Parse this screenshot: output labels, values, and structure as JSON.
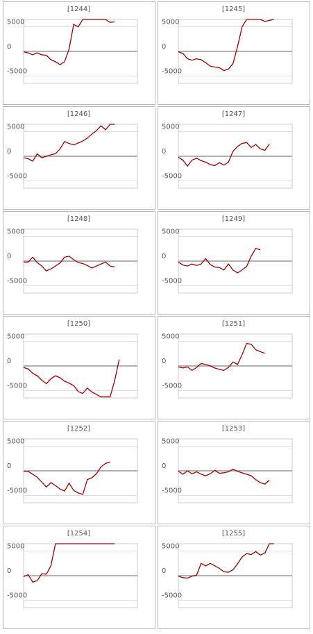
{
  "chart_data": [
    {
      "type": "line",
      "title": "[1244]",
      "color": "#a00000",
      "ylim": [
        -6500,
        6500
      ],
      "yticks": [
        5000,
        0,
        -5000
      ],
      "grid": true,
      "values": [
        -100,
        -300,
        -700,
        -300,
        -700,
        -800,
        -1700,
        -2100,
        -2700,
        -2100,
        500,
        5500,
        5000,
        6500,
        6500,
        6500,
        6500,
        6500,
        6500,
        5900,
        6000
      ]
    },
    {
      "type": "line",
      "title": "[1245]",
      "color": "#a00000",
      "ylim": [
        -6500,
        6500
      ],
      "yticks": [
        5000,
        0,
        -5000
      ],
      "grid": true,
      "values": [
        -100,
        -400,
        -1500,
        -1800,
        -1500,
        -1700,
        -2300,
        -3000,
        -3200,
        -3300,
        -3900,
        -3600,
        -2500,
        1000,
        5000,
        6500,
        6500,
        6500,
        6500,
        6100,
        6300,
        6500
      ]
    },
    {
      "type": "line",
      "title": "[1246]",
      "color": "#a00000",
      "ylim": [
        -6500,
        6500
      ],
      "yticks": [
        5000,
        0,
        -5000
      ],
      "grid": true,
      "values": [
        -300,
        -500,
        -1000,
        500,
        -300,
        0,
        300,
        500,
        1500,
        3000,
        2600,
        2300,
        2700,
        3100,
        3700,
        4500,
        5200,
        6200,
        5400,
        6500,
        6500
      ]
    },
    {
      "type": "line",
      "title": "[1247]",
      "color": "#a00000",
      "ylim": [
        -6500,
        6500
      ],
      "yticks": [
        5000,
        0,
        -5000
      ],
      "grid": true,
      "values": [
        -200,
        -800,
        -2000,
        -800,
        -400,
        -900,
        -1200,
        -1700,
        -1900,
        -1300,
        -1800,
        -1200,
        1000,
        2000,
        2600,
        2800,
        1800,
        2400,
        1500,
        1200,
        2500
      ]
    },
    {
      "type": "line",
      "title": "[1248]",
      "color": "#a00000",
      "ylim": [
        -6500,
        6500
      ],
      "yticks": [
        5000,
        0,
        -5000
      ],
      "grid": true,
      "values": [
        -200,
        -200,
        800,
        -300,
        -1000,
        -2000,
        -1600,
        -1000,
        -400,
        800,
        1000,
        300,
        -300,
        -500,
        -900,
        -1400,
        -1000,
        -600,
        -200,
        -1000,
        -1200
      ]
    },
    {
      "type": "line",
      "title": "[1249]",
      "color": "#a00000",
      "ylim": [
        -6500,
        6500
      ],
      "yticks": [
        5000,
        0,
        -5000
      ],
      "grid": true,
      "values": [
        -200,
        -800,
        -1000,
        -600,
        -900,
        -600,
        500,
        -700,
        -1200,
        -1300,
        -1800,
        -600,
        -1800,
        -2400,
        -1800,
        -1100,
        1000,
        2600,
        2300
      ]
    },
    {
      "type": "line",
      "title": "[1250]",
      "color": "#a00000",
      "ylim": [
        -6500,
        6500
      ],
      "yticks": [
        5000,
        0,
        -5000
      ],
      "grid": true,
      "values": [
        -300,
        -600,
        -1500,
        -2000,
        -2900,
        -3600,
        -2600,
        -2000,
        -2400,
        -3100,
        -3500,
        -4000,
        -5200,
        -5600,
        -4500,
        -5300,
        -5800,
        -6300,
        -6300,
        -6300,
        -3000,
        1300
      ]
    },
    {
      "type": "line",
      "title": "[1251]",
      "color": "#a00000",
      "ylim": [
        -6500,
        6500
      ],
      "yticks": [
        5000,
        0,
        -5000
      ],
      "grid": true,
      "values": [
        -200,
        -400,
        -200,
        -900,
        -300,
        500,
        300,
        0,
        -400,
        -700,
        -900,
        -300,
        800,
        300,
        2300,
        4600,
        4400,
        3300,
        2900,
        2600
      ]
    },
    {
      "type": "line",
      "title": "[1252]",
      "color": "#a00000",
      "ylim": [
        -6500,
        6500
      ],
      "yticks": [
        5000,
        0,
        -5000
      ],
      "grid": true,
      "values": [
        -100,
        -100,
        -700,
        -1300,
        -2300,
        -3300,
        -2400,
        -3000,
        -3700,
        -4100,
        -2500,
        -4000,
        -4500,
        -4800,
        -1800,
        -1400,
        -600,
        800,
        1500,
        1800
      ]
    },
    {
      "type": "line",
      "title": "[1253]",
      "color": "#a00000",
      "ylim": [
        -6500,
        6500
      ],
      "yticks": [
        5000,
        0,
        -5000
      ],
      "grid": true,
      "values": [
        -100,
        -700,
        0,
        -600,
        -200,
        -700,
        -1000,
        -600,
        100,
        -500,
        -400,
        -200,
        300,
        -100,
        -400,
        -700,
        -1000,
        -1800,
        -2400,
        -2700,
        -1900
      ]
    },
    {
      "type": "line",
      "title": "[1254]",
      "color": "#a00000",
      "ylim": [
        -6500,
        6500
      ],
      "yticks": [
        5000,
        0,
        -5000
      ],
      "grid": true,
      "values": [
        -200,
        200,
        -1300,
        -1000,
        400,
        300,
        2000,
        6500,
        6500,
        6500,
        6500,
        6500,
        6500,
        6500,
        6500,
        6500,
        6500,
        6500,
        6500,
        6500,
        6500
      ]
    },
    {
      "type": "line",
      "title": "[1255]",
      "color": "#a00000",
      "ylim": [
        -6500,
        6500
      ],
      "yticks": [
        5000,
        0,
        -5000
      ],
      "grid": true,
      "values": [
        -100,
        -400,
        -500,
        -100,
        100,
        2500,
        2000,
        2500,
        2000,
        1500,
        800,
        700,
        1200,
        2400,
        3800,
        4500,
        4300,
        4900,
        4200,
        4600,
        6500,
        6500
      ]
    }
  ]
}
